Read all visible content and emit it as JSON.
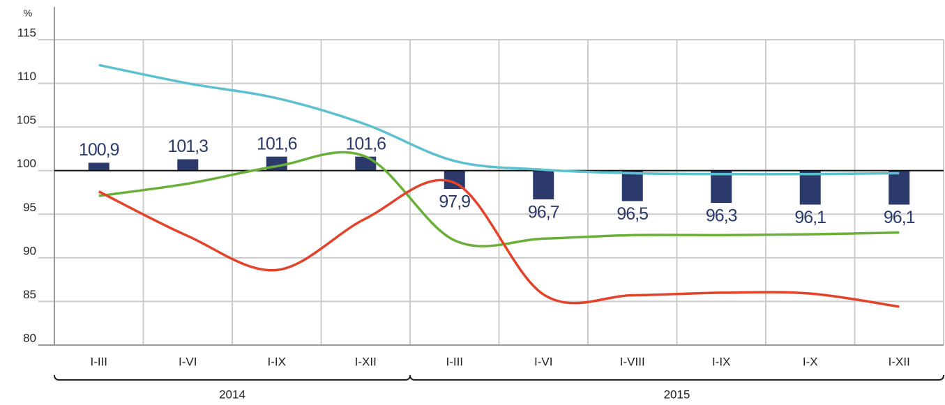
{
  "chart_data": {
    "type": "bar_line",
    "y_label": "%",
    "categories": [
      "I-III",
      "I-VI",
      "I-IX",
      "I-XII",
      "I-III",
      "I-VI",
      "I-VIII",
      "I-IX",
      "I-X",
      "I-XII"
    ],
    "groups": [
      {
        "label": "2014",
        "count": 4
      },
      {
        "label": "2015",
        "count": 6
      }
    ],
    "ylim": [
      80,
      115
    ],
    "yticks": [
      80,
      85,
      90,
      95,
      100,
      105,
      110,
      115
    ],
    "grid": true,
    "baseline": 100,
    "bars": {
      "color": "#2b3a6b",
      "values": [
        100.9,
        101.3,
        101.6,
        101.6,
        97.9,
        96.7,
        96.5,
        96.3,
        96.1,
        96.1
      ],
      "value_labels": [
        "100,9",
        "101,3",
        "101,6",
        "101,6",
        "97,9",
        "96,7",
        "96,5",
        "96,3",
        "96,1",
        "96,1"
      ]
    },
    "series": [
      {
        "color": "#5bc0cf",
        "values": [
          112.1,
          110.0,
          108.3,
          105.3,
          101.1,
          100.1,
          99.7,
          99.6,
          99.6,
          99.7
        ]
      },
      {
        "color": "#6aaf3a",
        "values": [
          97.1,
          98.5,
          100.5,
          101.6,
          92.0,
          92.2,
          92.6,
          92.6,
          92.7,
          92.9
        ]
      },
      {
        "color": "#e2432a",
        "values": [
          97.6,
          92.5,
          88.6,
          94.5,
          98.6,
          85.8,
          85.7,
          86.0,
          85.9,
          84.4
        ]
      }
    ]
  }
}
